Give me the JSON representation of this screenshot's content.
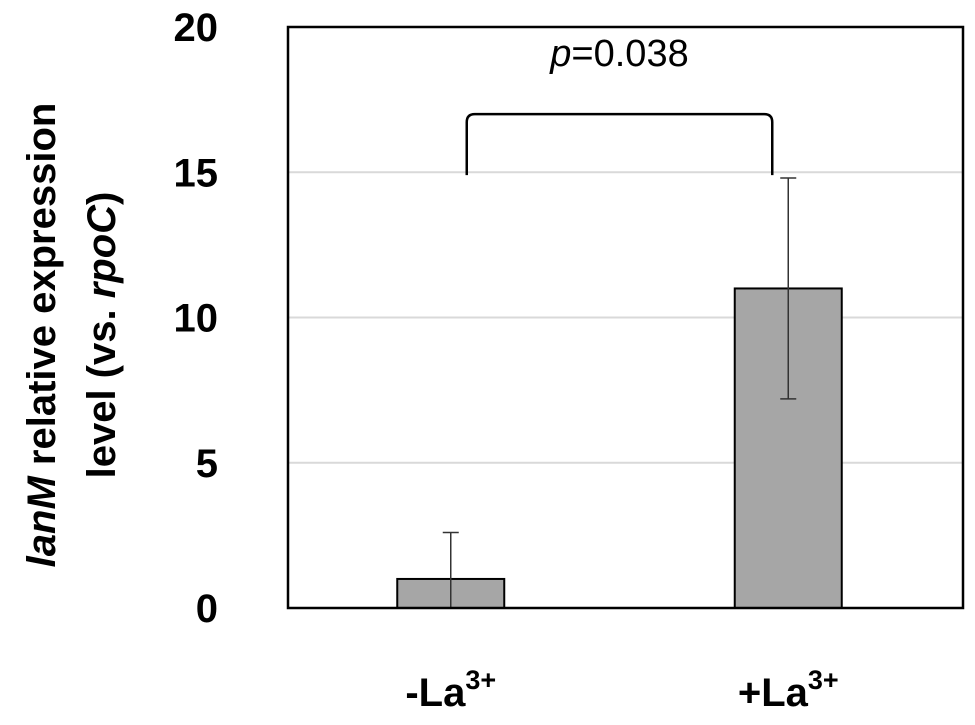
{
  "chart_data": {
    "type": "bar",
    "categories": [
      {
        "main": "-La",
        "sup": "3+"
      },
      {
        "main": "+La",
        "sup": "3+"
      }
    ],
    "values": [
      1.0,
      11.0
    ],
    "errors": [
      1.6,
      3.8
    ],
    "ylabel": {
      "line1_italic": "lanM",
      "line1_rest": " relative expression",
      "line2_pre": "level (vs. ",
      "line2_italic": "rpoC",
      "line2_post": ")"
    },
    "ylim": [
      0,
      20
    ],
    "yticks": [
      0,
      5,
      10,
      15,
      20
    ],
    "grid": true,
    "bar_color": "#a6a6a6",
    "annotation": {
      "p_symbol": "p",
      "p_value": "=0.038",
      "bracket_y": 17.0,
      "bracket_leg_bottom": 14.9
    }
  }
}
